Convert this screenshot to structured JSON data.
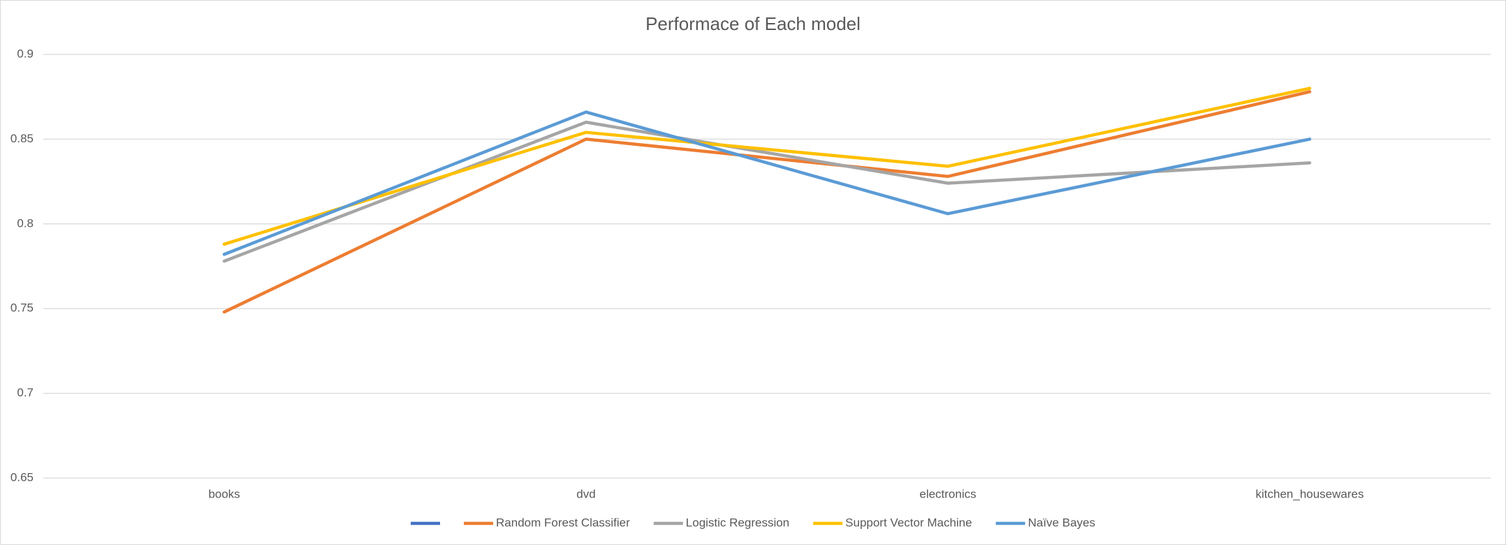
{
  "chart_data": {
    "type": "line",
    "title": "Performace of Each model",
    "categories": [
      "books",
      "dvd",
      "electronics",
      "kitchen_housewares"
    ],
    "series": [
      {
        "color": "#4472c4",
        "values": [
          null,
          null,
          null,
          null
        ]
      },
      {
        "name": "Random Forest Classifier",
        "color": "#ed7d31",
        "values": [
          0.748,
          0.85,
          0.828,
          0.878
        ]
      },
      {
        "name": "Logistic Regression",
        "color": "#a5a5a5",
        "values": [
          0.778,
          0.86,
          0.824,
          0.836
        ]
      },
      {
        "name": "Support Vector Machine",
        "color": "#ffc000",
        "values": [
          0.788,
          0.854,
          0.834,
          0.88
        ]
      },
      {
        "name": "Naïve Bayes",
        "color": "#5b9bd5",
        "values": [
          0.782,
          0.866,
          0.806,
          0.85
        ]
      }
    ],
    "ylim": [
      0.65,
      0.9
    ],
    "yticks": [
      0.65,
      0.7,
      0.75,
      0.8,
      0.85,
      0.9
    ],
    "grid": true,
    "legend": "bottom"
  }
}
